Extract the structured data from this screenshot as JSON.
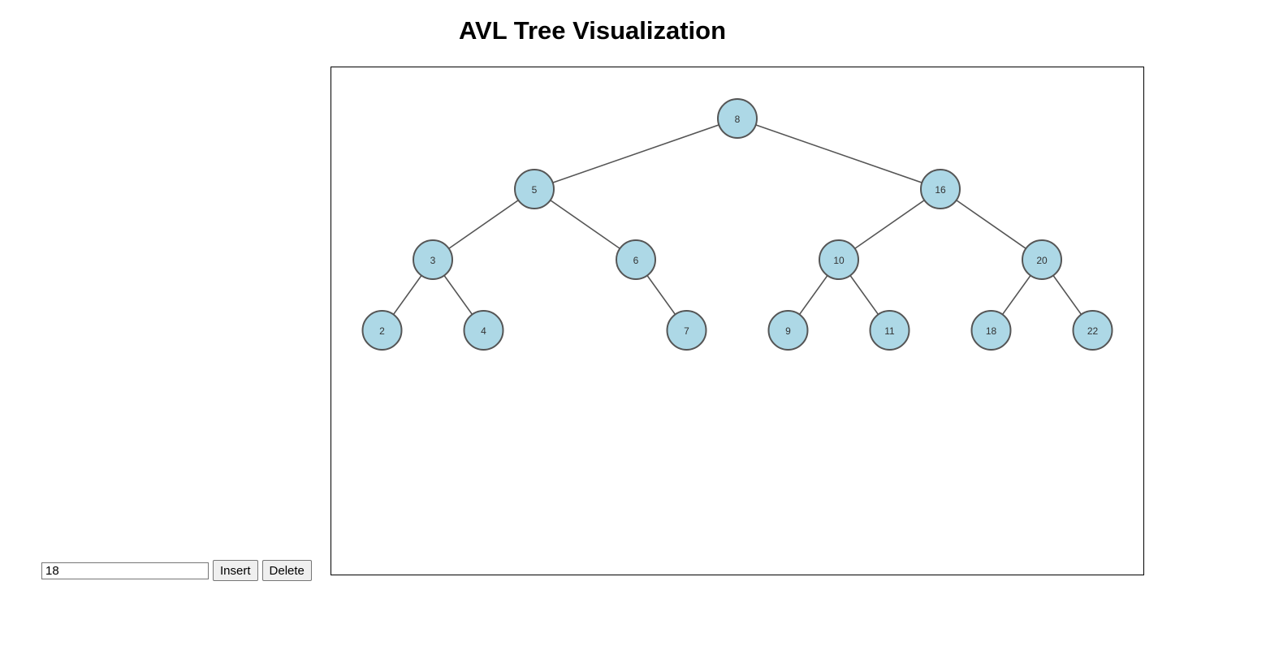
{
  "page": {
    "title": "AVL Tree Visualization"
  },
  "controls": {
    "input_value": "18",
    "insert_label": "Insert",
    "delete_label": "Delete"
  },
  "tree": {
    "colors": {
      "node_fill": "#add8e6",
      "node_stroke": "#555555",
      "edge": "#555555"
    },
    "root": {
      "value": "8",
      "left": {
        "value": "5",
        "left": {
          "value": "3",
          "left": {
            "value": "2"
          },
          "right": {
            "value": "4"
          }
        },
        "right": {
          "value": "6",
          "right": {
            "value": "7"
          }
        }
      },
      "right": {
        "value": "16",
        "left": {
          "value": "10",
          "left": {
            "value": "9"
          },
          "right": {
            "value": "11"
          }
        },
        "right": {
          "value": "20",
          "left": {
            "value": "18"
          },
          "right": {
            "value": "22"
          }
        }
      }
    }
  }
}
